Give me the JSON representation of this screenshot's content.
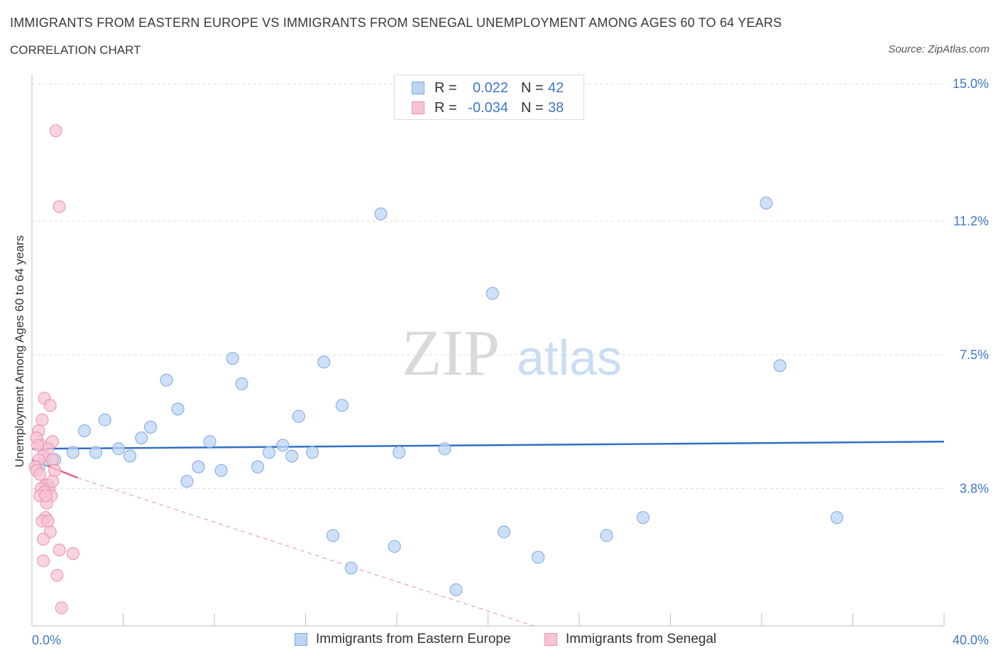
{
  "header": {
    "title": "IMMIGRANTS FROM EASTERN EUROPE VS IMMIGRANTS FROM SENEGAL UNEMPLOYMENT AMONG AGES 60 TO 64 YEARS",
    "subtitle": "CORRELATION CHART",
    "source": "Source: ZipAtlas.com"
  },
  "legend": {
    "r_label": "R =",
    "n_label": "N =",
    "series": [
      {
        "r": "0.022",
        "n": "42"
      },
      {
        "r": "-0.034",
        "n": "38"
      }
    ]
  },
  "watermark": {
    "zip": "ZIP",
    "atlas": "atlas"
  },
  "colors": {
    "blue_fill": "#bcd5f5",
    "blue_stroke": "#7aa7de",
    "blue_line": "#2f6fc2",
    "pink_fill": "#f7c4d4",
    "pink_stroke": "#ea8fae",
    "pink_line": "#e0608c",
    "grid": "#dddddd",
    "axis_text": "#3d78c8"
  },
  "chart_data": {
    "type": "scatter",
    "title": "IMMIGRANTS FROM EASTERN EUROPE VS IMMIGRANTS FROM SENEGAL UNEMPLOYMENT AMONG AGES 60 TO 64 YEARS",
    "xlabel": "",
    "ylabel": "Unemployment Among Ages 60 to 64 years",
    "xlim": [
      0,
      40
    ],
    "ylim": [
      0,
      15
    ],
    "x_tick_labels": [
      "0.0%",
      "40.0%"
    ],
    "y_ticks": [
      3.8,
      7.5,
      11.2,
      15.0
    ],
    "y_tick_labels": [
      "3.8%",
      "7.5%",
      "11.2%",
      "15.0%"
    ],
    "series": [
      {
        "name": "Immigrants from Eastern Europe",
        "trend": {
          "x": [
            0,
            40
          ],
          "y": [
            4.9,
            5.1
          ]
        },
        "points": [
          [
            0.6,
            4.6
          ],
          [
            1.0,
            4.6
          ],
          [
            1.8,
            4.8
          ],
          [
            2.3,
            5.4
          ],
          [
            2.8,
            4.8
          ],
          [
            3.2,
            5.7
          ],
          [
            3.8,
            4.9
          ],
          [
            4.3,
            4.7
          ],
          [
            4.8,
            5.2
          ],
          [
            5.2,
            5.5
          ],
          [
            5.9,
            6.8
          ],
          [
            6.4,
            6.0
          ],
          [
            6.8,
            4.0
          ],
          [
            7.3,
            4.4
          ],
          [
            7.8,
            5.1
          ],
          [
            8.3,
            4.3
          ],
          [
            8.8,
            7.4
          ],
          [
            9.2,
            6.7
          ],
          [
            9.9,
            4.4
          ],
          [
            10.4,
            4.8
          ],
          [
            11.0,
            5.0
          ],
          [
            11.4,
            4.7
          ],
          [
            11.7,
            5.8
          ],
          [
            12.3,
            4.8
          ],
          [
            12.8,
            7.3
          ],
          [
            13.2,
            2.5
          ],
          [
            13.6,
            6.1
          ],
          [
            14.0,
            1.6
          ],
          [
            15.3,
            11.4
          ],
          [
            15.9,
            2.2
          ],
          [
            16.1,
            4.8
          ],
          [
            18.1,
            4.9
          ],
          [
            18.6,
            1.0
          ],
          [
            20.2,
            9.2
          ],
          [
            20.7,
            2.6
          ],
          [
            22.2,
            1.9
          ],
          [
            25.2,
            2.5
          ],
          [
            26.8,
            3.0
          ],
          [
            32.2,
            11.7
          ],
          [
            32.8,
            7.2
          ],
          [
            35.3,
            3.0
          ],
          [
            0.3,
            4.4
          ]
        ]
      },
      {
        "name": "Immigrants from Senegal",
        "trend": {
          "x": [
            0,
            2.0
          ],
          "y": [
            4.6,
            4.1
          ]
        },
        "trend_ext": {
          "x": [
            2.0,
            22.0
          ],
          "y": [
            4.1,
            0.0
          ]
        },
        "points": [
          [
            1.05,
            13.7
          ],
          [
            1.2,
            11.6
          ],
          [
            0.55,
            6.3
          ],
          [
            0.8,
            6.1
          ],
          [
            0.45,
            5.7
          ],
          [
            0.3,
            5.4
          ],
          [
            0.2,
            5.2
          ],
          [
            0.9,
            5.1
          ],
          [
            0.4,
            5.0
          ],
          [
            0.7,
            4.9
          ],
          [
            0.5,
            4.7
          ],
          [
            0.3,
            4.6
          ],
          [
            0.9,
            4.6
          ],
          [
            0.15,
            4.4
          ],
          [
            1.0,
            4.3
          ],
          [
            0.2,
            4.3
          ],
          [
            0.6,
            3.9
          ],
          [
            0.7,
            3.9
          ],
          [
            0.4,
            3.8
          ],
          [
            0.75,
            3.8
          ],
          [
            0.55,
            3.7
          ],
          [
            0.85,
            3.6
          ],
          [
            0.35,
            3.6
          ],
          [
            0.65,
            3.4
          ],
          [
            0.6,
            3.0
          ],
          [
            0.45,
            2.9
          ],
          [
            0.7,
            2.9
          ],
          [
            0.8,
            2.6
          ],
          [
            0.5,
            2.4
          ],
          [
            1.2,
            2.1
          ],
          [
            1.8,
            2.0
          ],
          [
            0.5,
            1.8
          ],
          [
            1.1,
            1.4
          ],
          [
            1.3,
            0.5
          ],
          [
            0.25,
            5.0
          ],
          [
            0.35,
            4.2
          ],
          [
            0.9,
            4.0
          ],
          [
            0.6,
            3.6
          ]
        ]
      }
    ]
  },
  "bottom_legend": [
    "Immigrants from Eastern Europe",
    "Immigrants from Senegal"
  ]
}
